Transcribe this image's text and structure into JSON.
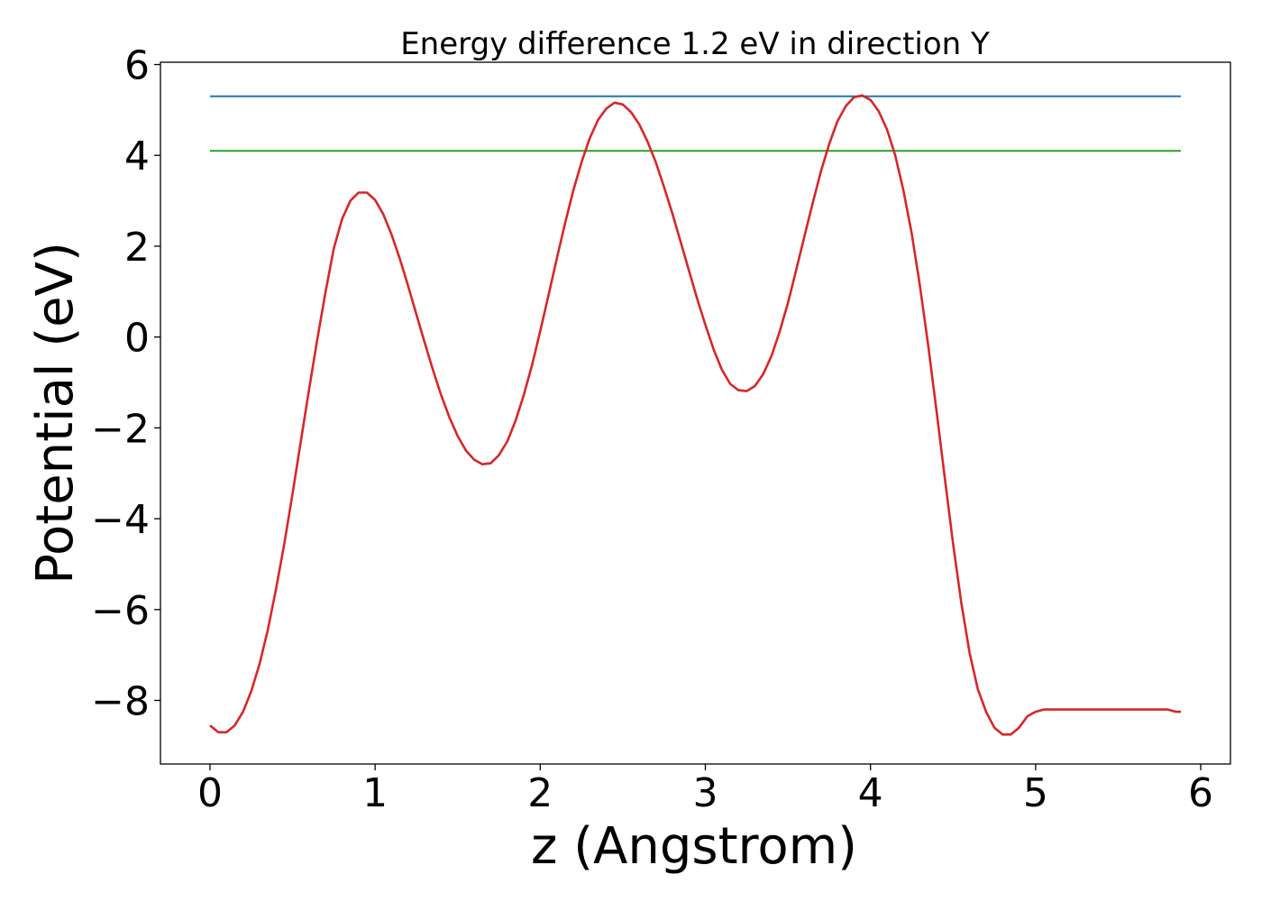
{
  "chart_data": {
    "type": "line",
    "title": "Energy difference 1.2 eV in direction Y",
    "xlabel": "z (Angstrom)",
    "ylabel": "Potential (eV)",
    "xlim": [
      -0.3,
      6.18
    ],
    "ylim": [
      -9.4,
      6.05
    ],
    "xticks": [
      0,
      1,
      2,
      3,
      4,
      5,
      6
    ],
    "xtick_labels": [
      "0",
      "1",
      "2",
      "3",
      "4",
      "5",
      "6"
    ],
    "yticks": [
      -8,
      -6,
      -4,
      -2,
      0,
      2,
      4,
      6
    ],
    "ytick_labels": [
      "−8",
      "−6",
      "−4",
      "−2",
      "0",
      "2",
      "4",
      "6"
    ],
    "grid": false,
    "series": [
      {
        "color": "#1f77b4",
        "x": [
          0,
          5.88
        ],
        "y": [
          5.3,
          5.3
        ]
      },
      {
        "color": "#2ca02c",
        "x": [
          0,
          5.88
        ],
        "y": [
          4.1,
          4.1
        ]
      },
      {
        "color": "#d62728",
        "x": [
          0,
          0.05,
          0.1,
          0.15,
          0.2,
          0.25,
          0.3,
          0.35,
          0.4,
          0.45,
          0.5,
          0.55,
          0.6,
          0.65,
          0.7,
          0.75,
          0.8,
          0.85,
          0.9,
          0.95,
          1.0,
          1.05,
          1.1,
          1.15,
          1.2,
          1.25,
          1.3,
          1.35,
          1.4,
          1.45,
          1.5,
          1.55,
          1.6,
          1.65,
          1.7,
          1.75,
          1.8,
          1.85,
          1.9,
          1.95,
          2.0,
          2.05,
          2.1,
          2.15,
          2.2,
          2.25,
          2.3,
          2.35,
          2.4,
          2.45,
          2.5,
          2.55,
          2.6,
          2.65,
          2.7,
          2.75,
          2.8,
          2.85,
          2.9,
          2.95,
          3.0,
          3.05,
          3.1,
          3.15,
          3.2,
          3.25,
          3.3,
          3.35,
          3.4,
          3.45,
          3.5,
          3.55,
          3.6,
          3.65,
          3.7,
          3.75,
          3.8,
          3.85,
          3.9,
          3.95,
          4.0,
          4.05,
          4.1,
          4.15,
          4.2,
          4.25,
          4.3,
          4.35,
          4.4,
          4.45,
          4.5,
          4.55,
          4.6,
          4.65,
          4.7,
          4.75,
          4.8,
          4.85,
          4.9,
          4.95,
          5.0,
          5.05,
          5.1,
          5.15,
          5.2,
          5.25,
          5.3,
          5.35,
          5.4,
          5.45,
          5.5,
          5.55,
          5.6,
          5.65,
          5.7,
          5.75,
          5.8,
          5.85,
          5.88
        ],
        "y": [
          -8.55,
          -8.7,
          -8.7,
          -8.55,
          -8.25,
          -7.8,
          -7.2,
          -6.45,
          -5.55,
          -4.55,
          -3.45,
          -2.3,
          -1.15,
          -0.05,
          1.0,
          1.95,
          2.6,
          3.0,
          3.18,
          3.18,
          3.02,
          2.7,
          2.25,
          1.72,
          1.12,
          0.5,
          -0.12,
          -0.72,
          -1.28,
          -1.77,
          -2.18,
          -2.5,
          -2.7,
          -2.8,
          -2.78,
          -2.6,
          -2.3,
          -1.85,
          -1.28,
          -0.62,
          0.13,
          0.92,
          1.72,
          2.5,
          3.22,
          3.85,
          4.38,
          4.78,
          5.03,
          5.16,
          5.12,
          4.95,
          4.68,
          4.3,
          3.85,
          3.3,
          2.72,
          2.1,
          1.47,
          0.85,
          0.27,
          -0.27,
          -0.72,
          -1.03,
          -1.17,
          -1.19,
          -1.08,
          -0.82,
          -0.42,
          0.12,
          0.75,
          1.47,
          2.22,
          2.95,
          3.65,
          4.25,
          4.75,
          5.08,
          5.28,
          5.32,
          5.22,
          4.97,
          4.57,
          4.0,
          3.22,
          2.27,
          1.12,
          -0.2,
          -1.62,
          -3.1,
          -4.55,
          -5.85,
          -6.95,
          -7.75,
          -8.25,
          -8.6,
          -8.75,
          -8.75,
          -8.6,
          -8.35,
          -8.25,
          -8.2,
          -8.2,
          -8.2,
          -8.2,
          -8.2,
          -8.2,
          -8.2,
          -8.2,
          -8.2,
          -8.2,
          -8.2,
          -8.2,
          -8.2,
          -8.2,
          -8.2,
          -8.2,
          -8.25,
          -8.25
        ]
      }
    ]
  }
}
